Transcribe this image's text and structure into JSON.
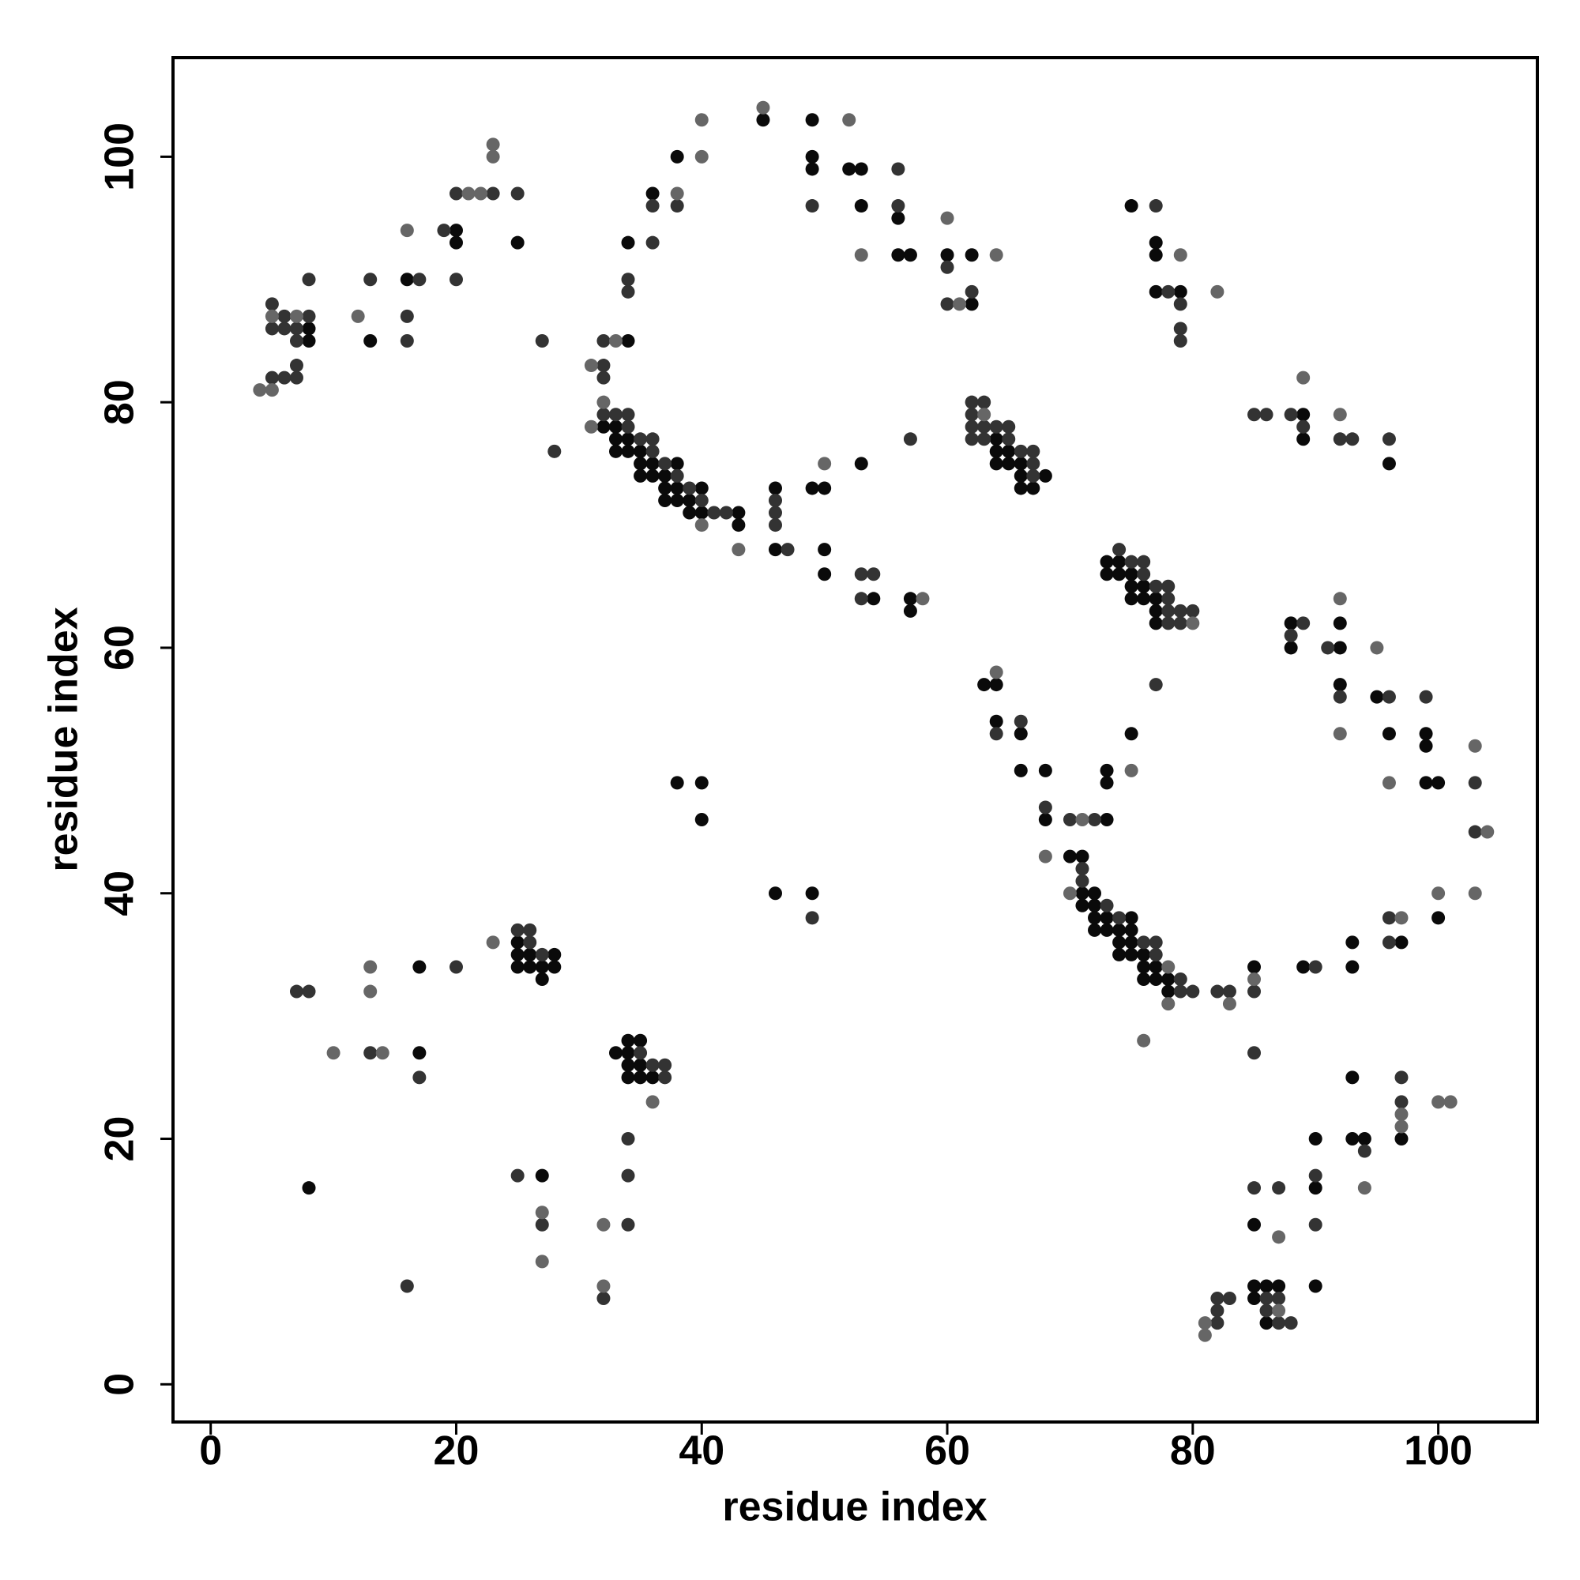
{
  "chart_data": {
    "type": "scatter",
    "xlabel": "residue index",
    "ylabel": "residue index",
    "xlim": [
      -3.07,
      108.07
    ],
    "ylim": [
      -3.07,
      108.07
    ],
    "xticks": [
      0,
      20,
      40,
      60,
      80,
      100
    ],
    "yticks": [
      0,
      20,
      40,
      60,
      80,
      100
    ],
    "grid": false,
    "series": [
      {
        "color": "#0a0a0a",
        "x": [
          8,
          8,
          13,
          16,
          20,
          20,
          25,
          34,
          34,
          36,
          38,
          45,
          49,
          49,
          49,
          52,
          53,
          53,
          56,
          56,
          57,
          60,
          62,
          62,
          75,
          77,
          77,
          77,
          79,
          32,
          33,
          33,
          33,
          34,
          34,
          35,
          35,
          35,
          36,
          36,
          37,
          37,
          37,
          38,
          38,
          38,
          39,
          39,
          40,
          40,
          43,
          43,
          46,
          46,
          49,
          50,
          50,
          50,
          53,
          54,
          57,
          57,
          64,
          64,
          65,
          64,
          65,
          66,
          66,
          68,
          66,
          67,
          73,
          74,
          73,
          74,
          75,
          75,
          76,
          75,
          76,
          77,
          77,
          77,
          89,
          89,
          96,
          88,
          88,
          92,
          92,
          92,
          95,
          96,
          99,
          99,
          99,
          100,
          100,
          63,
          64,
          64,
          66,
          66,
          68,
          68,
          73,
          73,
          73,
          75,
          70,
          71,
          71,
          72,
          71,
          72,
          72,
          73,
          75,
          72,
          73,
          74,
          75,
          74,
          75,
          74,
          75,
          76,
          76,
          77,
          76,
          77,
          78,
          78,
          85,
          89,
          93,
          93,
          97,
          93,
          97,
          90,
          93,
          94,
          90,
          85,
          90,
          85,
          86,
          87,
          85,
          86,
          8,
          17,
          17,
          25,
          25,
          26,
          28,
          25,
          26,
          27,
          28,
          27,
          27,
          33,
          34,
          35,
          34,
          34,
          35,
          34,
          35,
          36,
          38,
          40,
          40,
          46,
          49
        ],
        "values": [
          86,
          85,
          85,
          90,
          94,
          93,
          93,
          85,
          93,
          97,
          100,
          103,
          103,
          100,
          99,
          99,
          99,
          96,
          95,
          92,
          92,
          92,
          92,
          88,
          96,
          93,
          92,
          89,
          89,
          78,
          78,
          77,
          76,
          77,
          76,
          76,
          75,
          74,
          75,
          74,
          74,
          73,
          72,
          75,
          73,
          72,
          72,
          71,
          73,
          71,
          71,
          70,
          73,
          68,
          73,
          73,
          68,
          66,
          75,
          64,
          64,
          63,
          77,
          76,
          76,
          75,
          75,
          75,
          74,
          74,
          73,
          73,
          67,
          67,
          66,
          66,
          66,
          65,
          65,
          64,
          64,
          64,
          63,
          62,
          79,
          77,
          75,
          62,
          60,
          60,
          62,
          57,
          56,
          53,
          53,
          52,
          49,
          49,
          38,
          57,
          57,
          54,
          53,
          50,
          50,
          46,
          46,
          50,
          49,
          53,
          43,
          43,
          40,
          40,
          39,
          39,
          38,
          38,
          38,
          37,
          37,
          37,
          37,
          36,
          36,
          35,
          35,
          35,
          34,
          34,
          33,
          33,
          33,
          32,
          34,
          34,
          36,
          34,
          36,
          25,
          20,
          20,
          20,
          20,
          16,
          13,
          8,
          8,
          8,
          8,
          7,
          5,
          16,
          34,
          27,
          36,
          35,
          35,
          35,
          34,
          34,
          34,
          34,
          33,
          17,
          27,
          28,
          28,
          27,
          26,
          26,
          25,
          25,
          25,
          49,
          49,
          46,
          40,
          40
        ]
      },
      {
        "color": "#333333",
        "x": [
          5,
          6,
          7,
          7,
          5,
          6,
          7,
          6,
          8,
          5,
          7,
          8,
          13,
          16,
          16,
          17,
          19,
          20,
          20,
          23,
          25,
          27,
          28,
          32,
          32,
          32,
          34,
          34,
          36,
          36,
          38,
          49,
          56,
          56,
          60,
          60,
          62,
          77,
          78,
          79,
          79,
          79,
          32,
          33,
          34,
          34,
          35,
          36,
          36,
          37,
          38,
          39,
          40,
          41,
          42,
          46,
          46,
          46,
          47,
          53,
          54,
          53,
          57,
          62,
          63,
          62,
          62,
          63,
          64,
          65,
          62,
          63,
          65,
          66,
          67,
          67,
          67,
          74,
          75,
          76,
          76,
          77,
          78,
          78,
          78,
          79,
          80,
          78,
          79,
          85,
          86,
          88,
          89,
          92,
          93,
          96,
          89,
          88,
          91,
          92,
          96,
          99,
          103,
          103,
          64,
          66,
          68,
          70,
          72,
          77,
          71,
          71,
          73,
          74,
          76,
          77,
          77,
          79,
          79,
          80,
          82,
          83,
          85,
          85,
          90,
          96,
          96,
          97,
          97,
          94,
          90,
          85,
          87,
          90,
          86,
          87,
          86,
          87,
          88,
          82,
          83,
          82,
          82,
          7,
          8,
          13,
          17,
          20,
          16,
          25,
          26,
          26,
          27,
          25,
          27,
          34,
          32,
          34,
          34,
          35,
          36,
          37,
          37,
          49
        ],
        "values": [
          82,
          82,
          82,
          83,
          86,
          86,
          86,
          87,
          87,
          88,
          85,
          90,
          90,
          85,
          87,
          90,
          94,
          90,
          97,
          97,
          97,
          85,
          76,
          83,
          82,
          85,
          89,
          90,
          93,
          96,
          96,
          96,
          99,
          96,
          91,
          88,
          89,
          96,
          89,
          88,
          86,
          85,
          79,
          79,
          79,
          78,
          77,
          77,
          76,
          75,
          74,
          73,
          72,
          71,
          71,
          72,
          71,
          70,
          68,
          66,
          66,
          64,
          77,
          80,
          80,
          79,
          78,
          78,
          78,
          78,
          77,
          77,
          77,
          76,
          76,
          75,
          74,
          68,
          67,
          67,
          66,
          65,
          65,
          64,
          63,
          63,
          63,
          62,
          62,
          79,
          79,
          79,
          78,
          77,
          77,
          77,
          62,
          61,
          60,
          56,
          56,
          56,
          49,
          45,
          53,
          54,
          47,
          46,
          46,
          57,
          42,
          41,
          39,
          38,
          36,
          36,
          35,
          33,
          32,
          32,
          32,
          32,
          32,
          27,
          34,
          38,
          36,
          25,
          23,
          19,
          17,
          16,
          16,
          13,
          7,
          7,
          6,
          5,
          5,
          7,
          7,
          6,
          5,
          32,
          32,
          27,
          25,
          34,
          8,
          37,
          37,
          36,
          35,
          17,
          13,
          13,
          7,
          20,
          17,
          27,
          26,
          26,
          25,
          38
        ]
      },
      {
        "color": "#666666",
        "x": [
          4,
          5,
          5,
          7,
          12,
          16,
          21,
          22,
          23,
          23,
          31,
          33,
          38,
          40,
          40,
          45,
          52,
          53,
          60,
          61,
          64,
          79,
          82,
          31,
          32,
          40,
          43,
          50,
          58,
          63,
          80,
          89,
          92,
          92,
          92,
          95,
          96,
          103,
          104,
          103,
          100,
          64,
          68,
          71,
          75,
          70,
          78,
          78,
          76,
          83,
          85,
          97,
          97,
          97,
          100,
          101,
          94,
          87,
          87,
          81,
          81,
          10,
          13,
          13,
          14,
          23,
          27,
          27,
          32,
          32,
          36
        ],
        "values": [
          81,
          81,
          87,
          87,
          87,
          94,
          97,
          97,
          100,
          101,
          83,
          85,
          97,
          100,
          103,
          104,
          103,
          92,
          95,
          88,
          92,
          92,
          89,
          78,
          80,
          70,
          68,
          75,
          64,
          79,
          62,
          82,
          79,
          64,
          53,
          60,
          49,
          52,
          45,
          40,
          40,
          58,
          43,
          46,
          50,
          40,
          34,
          31,
          28,
          31,
          33,
          38,
          22,
          21,
          23,
          23,
          16,
          12,
          6,
          5,
          4,
          27,
          34,
          32,
          27,
          36,
          14,
          10,
          13,
          8,
          23
        ]
      }
    ]
  }
}
